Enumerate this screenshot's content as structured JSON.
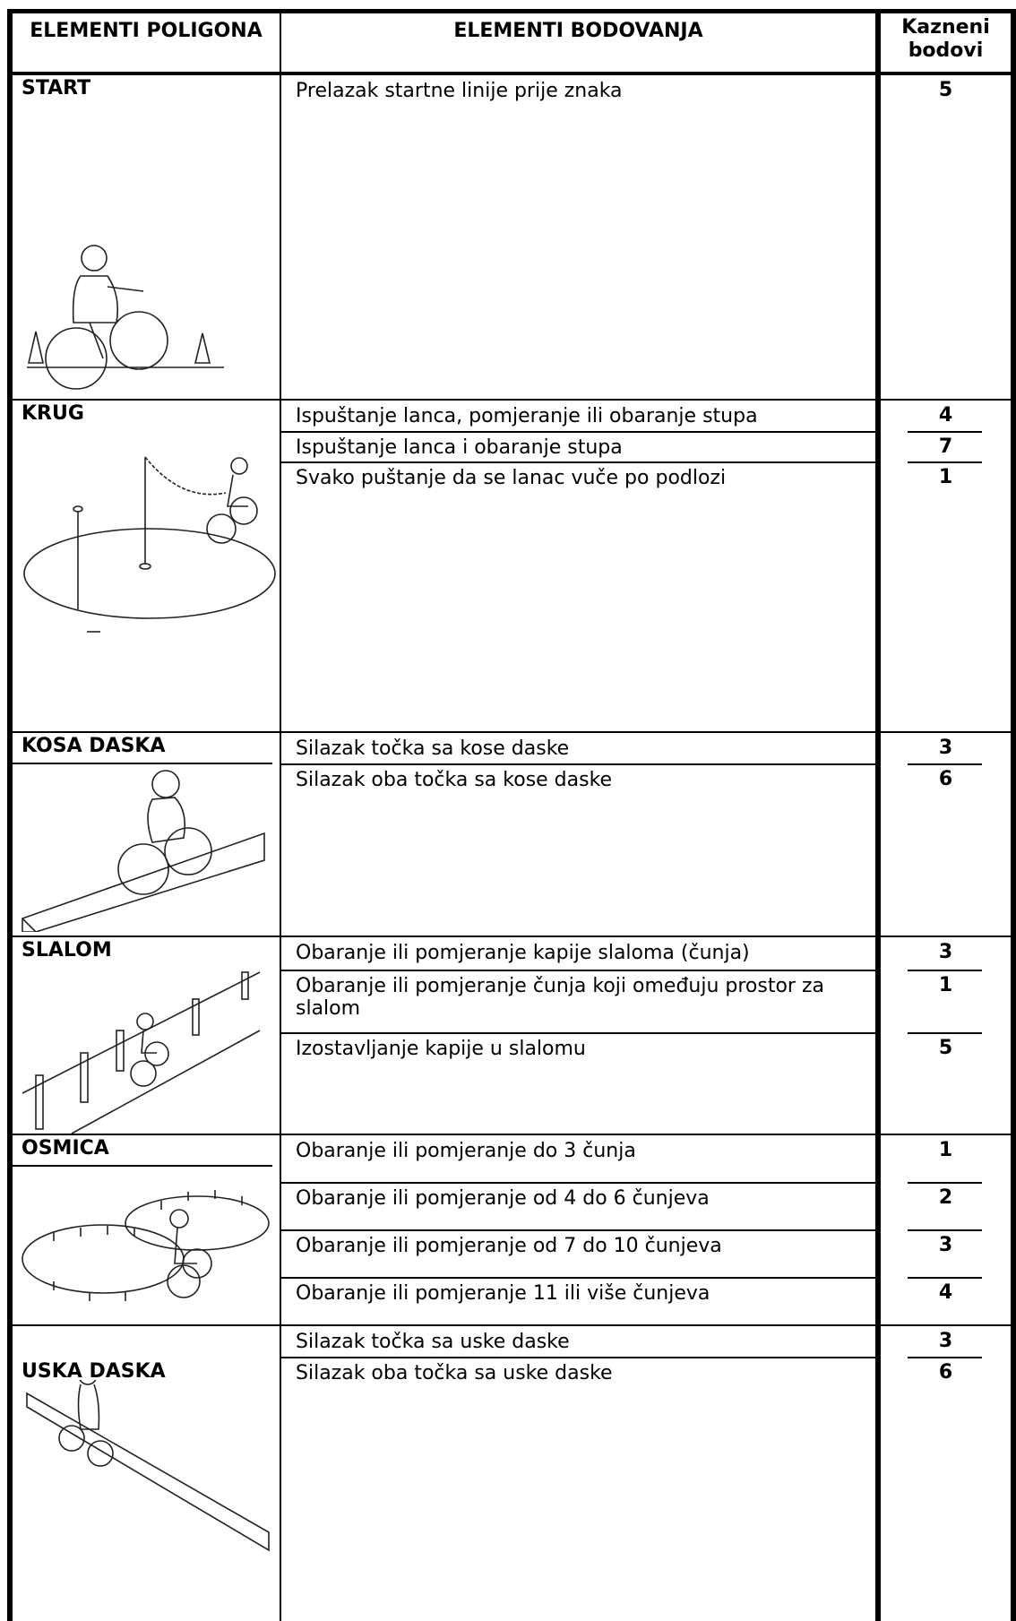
{
  "header": {
    "col1": "ELEMENTI POLIGONA",
    "col2": "ELEMENTI BODOVANJA",
    "col3": "Kazneni bodovi"
  },
  "sections": [
    {
      "name": "START",
      "items": [
        {
          "text": "Prelazak startne linije prije znaka",
          "points": 5
        }
      ]
    },
    {
      "name": "KRUG",
      "items": [
        {
          "text": "Ispuštanje lanca, pomjeranje ili obaranje stupa",
          "points": 4
        },
        {
          "text": "Ispuštanje lanca i obaranje stupa",
          "points": 7
        },
        {
          "text": "Svako puštanje da se lanac vuče po podlozi",
          "points": 1
        }
      ]
    },
    {
      "name": "KOSA DASKA",
      "items": [
        {
          "text": "Silazak točka sa kose daske",
          "points": 3
        },
        {
          "text": "Silazak oba točka sa kose daske",
          "points": 6
        }
      ]
    },
    {
      "name": "SLALOM",
      "items": [
        {
          "text": "Obaranje ili pomjeranje kapije slaloma (čunja)",
          "points": 3
        },
        {
          "text": "Obaranje ili pomjeranje čunja koji omeđuju prostor za slalom",
          "points": 1
        },
        {
          "text": "Izostavljanje kapije u slalomu",
          "points": 5
        }
      ]
    },
    {
      "name": "OSMICA",
      "items": [
        {
          "text": "Obaranje ili pomjeranje do  3 čunja",
          "points": 1
        },
        {
          "text": "Obaranje ili pomjeranje od 4 do 6 čunjeva",
          "points": 2
        },
        {
          "text": "Obaranje ili pomjeranje od 7 do 10 čunjeva",
          "points": 3
        },
        {
          "text": "Obaranje ili pomjeranje 11 ili više čunjeva",
          "points": 4
        }
      ]
    },
    {
      "name": "USKA DASKA",
      "items": [
        {
          "text": "Silazak točka sa uske daske",
          "points": 3
        },
        {
          "text": "Silazak oba točka sa uske daske",
          "points": 6
        }
      ]
    }
  ]
}
